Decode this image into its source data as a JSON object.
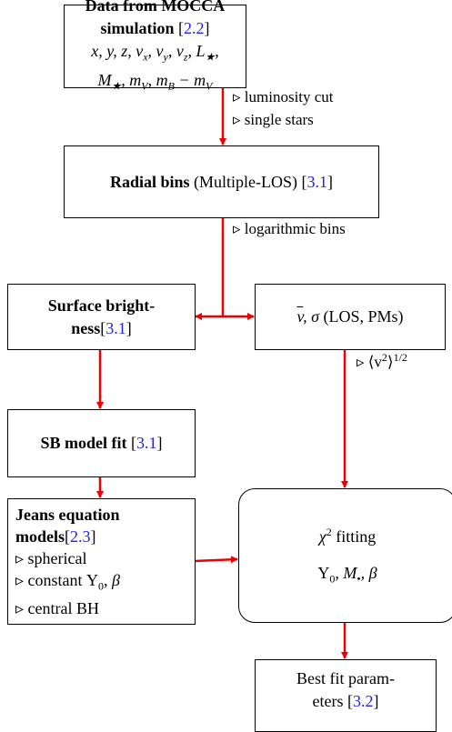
{
  "nodes": [
    {
      "lines": [
        [
          "Data from MOCCA simulation",
          "[",
          "2.2",
          "]"
        ],
        [
          "x, y, z, v",
          "x",
          ", v",
          "y",
          ", v",
          "z",
          ", L",
          "★",
          ","
        ],
        [
          "M",
          "★",
          ", m",
          "V",
          ", m",
          "B",
          " − m",
          "V"
        ]
      ]
    },
    {
      "lines": [
        [
          "Radial bins",
          " (Multiple-LOS) ",
          "[",
          "3.1",
          "]"
        ]
      ]
    },
    {
      "lines": [
        [
          "Surface bright-"
        ],
        [
          "ness",
          "[",
          "3.1",
          "]"
        ]
      ]
    },
    {
      "lines": [
        [
          "v",
          ", σ",
          " (LOS, PMs)"
        ]
      ]
    },
    {
      "lines": [
        [
          "SB model fit ",
          "[",
          "3.1",
          "]"
        ]
      ]
    },
    {
      "lines": [
        [
          "Jeans equation"
        ],
        [
          "models",
          "[",
          "2.3",
          "]"
        ],
        [
          "▹ spherical"
        ],
        [
          "▹ constant Υ",
          "0",
          ", β"
        ],
        [
          "▹ central BH"
        ]
      ]
    },
    {
      "lines": [
        [
          "χ",
          "2",
          " fitting"
        ],
        [
          "Υ",
          "0",
          ", M",
          "•",
          ", β"
        ]
      ]
    },
    {
      "lines": [
        [
          "Best fit param-"
        ],
        [
          "eters ",
          "[",
          "3.2",
          "]"
        ]
      ]
    }
  ],
  "notes": [
    [
      "▹ luminosity cut"
    ],
    [
      "▹ single stars"
    ],
    [
      "▹ logarithmic bins"
    ],
    [
      "▹ ⟨v",
      "2",
      "⟩",
      "1/2"
    ]
  ]
}
